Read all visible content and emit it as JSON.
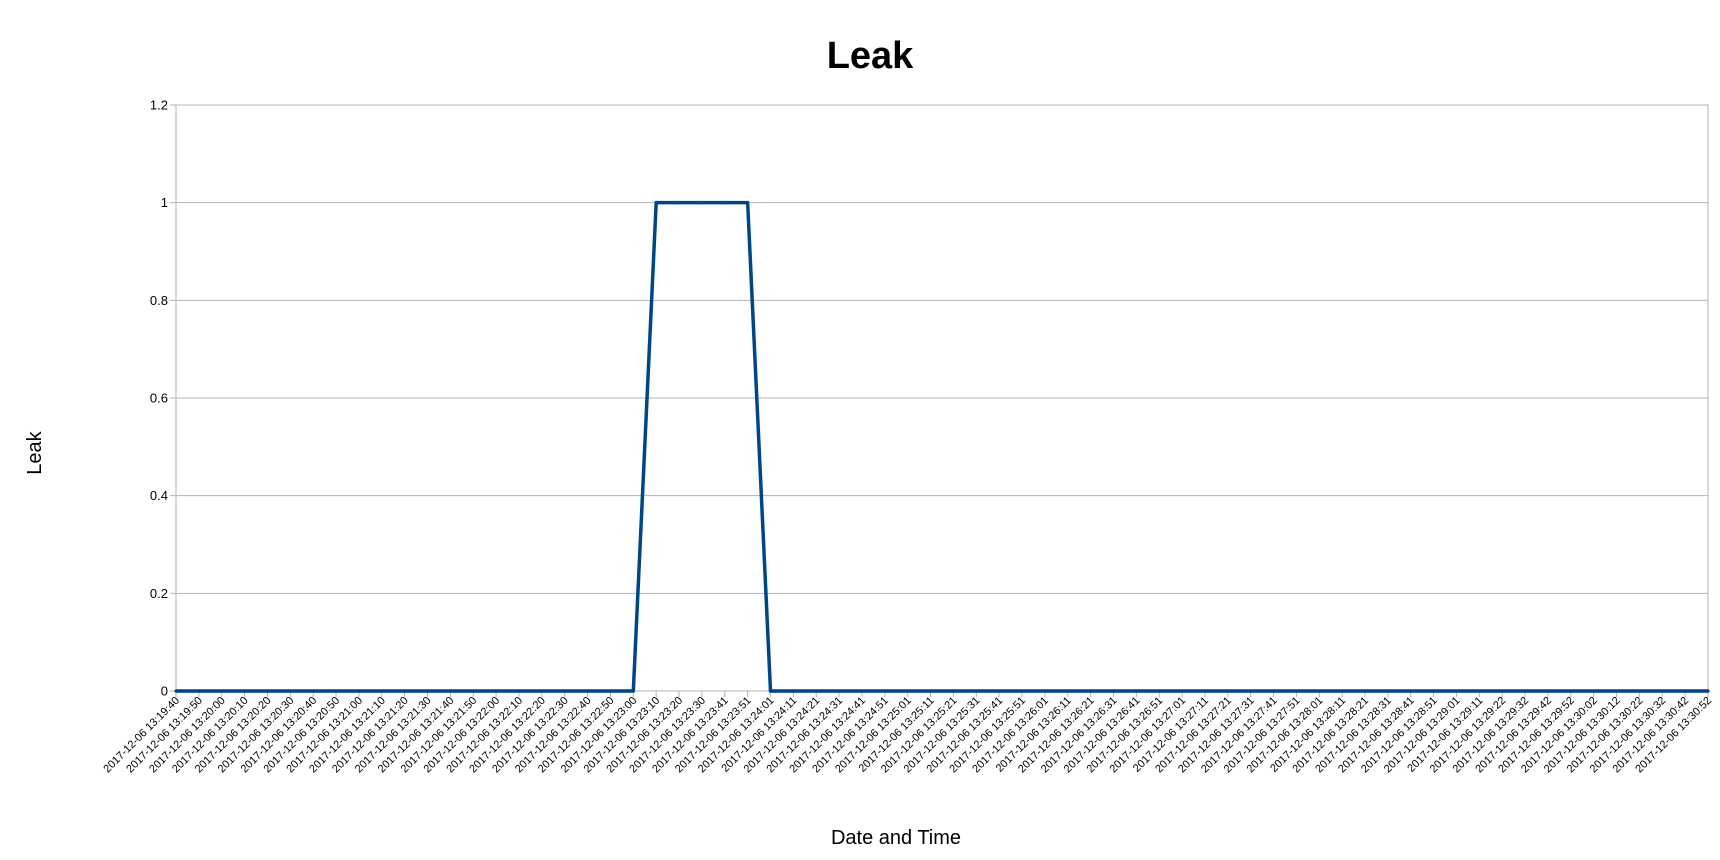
{
  "chart_data": {
    "type": "line",
    "title": "Leak",
    "xlabel": "Date and Time",
    "ylabel": "Leak",
    "ylim": [
      0,
      1.2
    ],
    "yticks": [
      "0",
      "0.2",
      "0.4",
      "0.6",
      "0.8",
      "1",
      "1.2"
    ],
    "grid": true,
    "legend": "none",
    "colors": {
      "series": "#004586",
      "grid": "#b3b3b3"
    },
    "x_tick_labels": [
      "2017-12-06 13:19:40",
      "2017-12-06 13:19:50",
      "2017-12-06 13:20:00",
      "2017-12-06 13:20:10",
      "2017-12-06 13:20:20",
      "2017-12-06 13:20:30",
      "2017-12-06 13:20:40",
      "2017-12-06 13:20:50",
      "2017-12-06 13:21:00",
      "2017-12-06 13:21:10",
      "2017-12-06 13:21:20",
      "2017-12-06 13:21:30",
      "2017-12-06 13:21:40",
      "2017-12-06 13:21:50",
      "2017-12-06 13:22:00",
      "2017-12-06 13:22:10",
      "2017-12-06 13:22:20",
      "2017-12-06 13:22:30",
      "2017-12-06 13:22:40",
      "2017-12-06 13:22:50",
      "2017-12-06 13:23:00",
      "2017-12-06 13:23:10",
      "2017-12-06 13:23:20",
      "2017-12-06 13:23:30",
      "2017-12-06 13:23:41",
      "2017-12-06 13:23:51",
      "2017-12-06 13:24:01",
      "2017-12-06 13:24:11",
      "2017-12-06 13:24:21",
      "2017-12-06 13:24:31",
      "2017-12-06 13:24:41",
      "2017-12-06 13:24:51",
      "2017-12-06 13:25:01",
      "2017-12-06 13:25:11",
      "2017-12-06 13:25:21",
      "2017-12-06 13:25:31",
      "2017-12-06 13:25:41",
      "2017-12-06 13:25:51",
      "2017-12-06 13:26:01",
      "2017-12-06 13:26:11",
      "2017-12-06 13:26:21",
      "2017-12-06 13:26:31",
      "2017-12-06 13:26:41",
      "2017-12-06 13:26:51",
      "2017-12-06 13:27:01",
      "2017-12-06 13:27:11",
      "2017-12-06 13:27:21",
      "2017-12-06 13:27:31",
      "2017-12-06 13:27:41",
      "2017-12-06 13:27:51",
      "2017-12-06 13:28:01",
      "2017-12-06 13:28:11",
      "2017-12-06 13:28:21",
      "2017-12-06 13:28:31",
      "2017-12-06 13:28:41",
      "2017-12-06 13:28:51",
      "2017-12-06 13:29:01",
      "2017-12-06 13:29:11",
      "2017-12-06 13:29:22",
      "2017-12-06 13:29:32",
      "2017-12-06 13:29:42",
      "2017-12-06 13:29:52",
      "2017-12-06 13:30:02",
      "2017-12-06 13:30:12",
      "2017-12-06 13:30:22",
      "2017-12-06 13:30:32",
      "2017-12-06 13:30:42",
      "2017-12-06 13:30:52"
    ],
    "series": [
      {
        "values": [
          0,
          0,
          0,
          0,
          0,
          0,
          0,
          0,
          0,
          0,
          0,
          0,
          0,
          0,
          0,
          0,
          0,
          0,
          0,
          0,
          0,
          1,
          1,
          1,
          1,
          1,
          0,
          0,
          0,
          0,
          0,
          0,
          0,
          0,
          0,
          0,
          0,
          0,
          0,
          0,
          0,
          0,
          0,
          0,
          0,
          0,
          0,
          0,
          0,
          0,
          0,
          0,
          0,
          0,
          0,
          0,
          0,
          0,
          0,
          0,
          0,
          0,
          0,
          0,
          0,
          0,
          0,
          0
        ]
      }
    ]
  }
}
